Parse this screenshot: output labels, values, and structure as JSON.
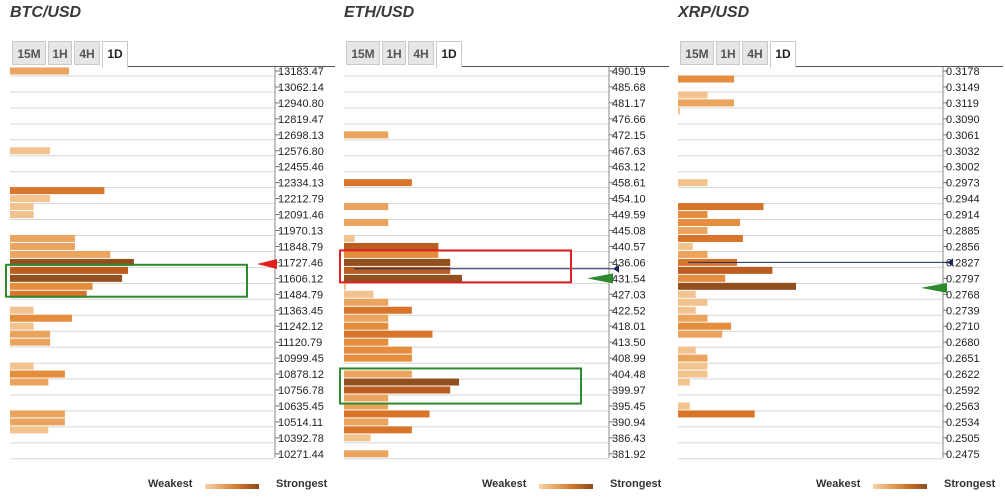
{
  "legend": {
    "weakest": "Weakest",
    "strongest": "Strongest"
  },
  "tabs": [
    "15M",
    "1H",
    "4H",
    "1D"
  ],
  "active_tab": "1D",
  "colors": {
    "level1": "#f2c38f",
    "level2": "#eaa45e",
    "level3": "#e48d3d",
    "level4": "#d9752a",
    "level5": "#bb5c20",
    "level6": "#93501f",
    "red_marker": "#e02020",
    "green_marker": "#2d8a2d",
    "navy_marker": "#1a2a5e",
    "grid": "#d6d6d6"
  },
  "panels": [
    {
      "title": "BTC/USD",
      "chart_data": {
        "type": "bar",
        "orientation": "horizontal",
        "price_levels": [
          "13183.47",
          "13062.14",
          "12940.80",
          "12819.47",
          "12698.13",
          "12576.80",
          "12455.46",
          "12334.13",
          "12212.79",
          "12091.46",
          "11970.13",
          "11848.79",
          "11727.46",
          "11606.12",
          "11484.79",
          "11363.45",
          "11242.12",
          "11120.79",
          "10999.45",
          "10878.12",
          "10756.78",
          "10635.45",
          "10514.11",
          "10392.78",
          "10271.44"
        ],
        "bars": [
          {
            "level": 0.0,
            "strength": 1.0,
            "tier": 2
          },
          {
            "level": 5.0,
            "strength": 0.68,
            "tier": 1
          },
          {
            "level": 7.5,
            "strength": 1.6,
            "tier": 4
          },
          {
            "level": 8.0,
            "strength": 0.68,
            "tier": 1
          },
          {
            "level": 8.5,
            "strength": 0.4,
            "tier": 1
          },
          {
            "level": 9.0,
            "strength": 0.4,
            "tier": 1
          },
          {
            "level": 10.5,
            "strength": 1.1,
            "tier": 2
          },
          {
            "level": 11.0,
            "strength": 1.1,
            "tier": 2
          },
          {
            "level": 11.5,
            "strength": 1.7,
            "tier": 2
          },
          {
            "level": 12.0,
            "strength": 2.1,
            "tier": 6
          },
          {
            "level": 12.5,
            "strength": 2.0,
            "tier": 5
          },
          {
            "level": 13.0,
            "strength": 1.9,
            "tier": 6
          },
          {
            "level": 13.5,
            "strength": 1.4,
            "tier": 3
          },
          {
            "level": 14.0,
            "strength": 1.3,
            "tier": 4
          },
          {
            "level": 15.0,
            "strength": 0.4,
            "tier": 1
          },
          {
            "level": 15.5,
            "strength": 1.05,
            "tier": 3
          },
          {
            "level": 16.0,
            "strength": 0.4,
            "tier": 1
          },
          {
            "level": 16.5,
            "strength": 0.68,
            "tier": 2
          },
          {
            "level": 17.0,
            "strength": 0.68,
            "tier": 2
          },
          {
            "level": 18.5,
            "strength": 0.4,
            "tier": 1
          },
          {
            "level": 19.0,
            "strength": 0.93,
            "tier": 3
          },
          {
            "level": 19.5,
            "strength": 0.65,
            "tier": 2
          },
          {
            "level": 21.5,
            "strength": 0.93,
            "tier": 2
          },
          {
            "level": 22.0,
            "strength": 0.93,
            "tier": 2
          },
          {
            "level": 22.5,
            "strength": 0.65,
            "tier": 1
          }
        ],
        "price_marker": {
          "level": 12.1,
          "side": "red"
        },
        "marker_arrow": "red",
        "highlight_box": {
          "from_level": 12.4,
          "to_level": 13.9,
          "color": "green"
        }
      }
    },
    {
      "title": "ETH/USD",
      "chart_data": {
        "type": "bar",
        "orientation": "horizontal",
        "price_levels": [
          "490.19",
          "485.68",
          "481.17",
          "476.66",
          "472.15",
          "467.63",
          "463.12",
          "458.61",
          "454.10",
          "449.59",
          "445.08",
          "440.57",
          "436.06",
          "431.54",
          "427.03",
          "422.52",
          "418.01",
          "413.50",
          "408.99",
          "404.48",
          "399.97",
          "395.45",
          "390.94",
          "386.43",
          "381.92"
        ],
        "bars": [
          {
            "level": 4.0,
            "strength": 0.75,
            "tier": 2
          },
          {
            "level": 7.0,
            "strength": 1.15,
            "tier": 4
          },
          {
            "level": 8.5,
            "strength": 0.75,
            "tier": 2
          },
          {
            "level": 9.5,
            "strength": 0.75,
            "tier": 2
          },
          {
            "level": 10.5,
            "strength": 0.18,
            "tier": 1
          },
          {
            "level": 11.0,
            "strength": 1.6,
            "tier": 5
          },
          {
            "level": 11.5,
            "strength": 1.6,
            "tier": 3
          },
          {
            "level": 12.0,
            "strength": 1.8,
            "tier": 6
          },
          {
            "level": 12.5,
            "strength": 1.8,
            "tier": 5
          },
          {
            "level": 13.0,
            "strength": 2.0,
            "tier": 6
          },
          {
            "level": 13.5,
            "strength": 0.03,
            "tier": 1
          },
          {
            "level": 14.0,
            "strength": 0.5,
            "tier": 1
          },
          {
            "level": 14.5,
            "strength": 0.75,
            "tier": 2
          },
          {
            "level": 15.0,
            "strength": 1.15,
            "tier": 4
          },
          {
            "level": 15.5,
            "strength": 0.75,
            "tier": 2
          },
          {
            "level": 16.0,
            "strength": 0.75,
            "tier": 3
          },
          {
            "level": 16.5,
            "strength": 1.5,
            "tier": 4
          },
          {
            "level": 17.0,
            "strength": 0.75,
            "tier": 3
          },
          {
            "level": 17.5,
            "strength": 1.15,
            "tier": 3
          },
          {
            "level": 18.0,
            "strength": 1.15,
            "tier": 3
          },
          {
            "level": 19.0,
            "strength": 1.15,
            "tier": 2
          },
          {
            "level": 19.5,
            "strength": 1.95,
            "tier": 6
          },
          {
            "level": 20.0,
            "strength": 1.8,
            "tier": 5
          },
          {
            "level": 20.5,
            "strength": 0.75,
            "tier": 2
          },
          {
            "level": 21.0,
            "strength": 0.75,
            "tier": 2
          },
          {
            "level": 21.5,
            "strength": 1.45,
            "tier": 4
          },
          {
            "level": 22.0,
            "strength": 0.75,
            "tier": 2
          },
          {
            "level": 22.5,
            "strength": 1.15,
            "tier": 4
          },
          {
            "level": 23.0,
            "strength": 0.45,
            "tier": 1
          },
          {
            "level": 24.0,
            "strength": 0.75,
            "tier": 2
          }
        ],
        "price_marker": {
          "level": 12.4,
          "side": "navy"
        },
        "marker_arrow": "green",
        "marker_arrow_level": 13.0,
        "highlight_box": {
          "from_level": 11.5,
          "to_level": 13.0,
          "color": "red"
        },
        "highlight_box2": {
          "from_level": 18.9,
          "to_level": 20.6,
          "color": "green"
        }
      }
    },
    {
      "title": "XRP/USD",
      "chart_data": {
        "type": "bar",
        "orientation": "horizontal",
        "price_levels": [
          "0.3178",
          "0.3149",
          "0.3119",
          "0.3090",
          "0.3061",
          "0.3032",
          "0.3002",
          "0.2973",
          "0.2944",
          "0.2914",
          "0.2885",
          "0.2856",
          "0.2827",
          "0.2797",
          "0.2768",
          "0.2739",
          "0.2710",
          "0.2680",
          "0.2651",
          "0.2622",
          "0.2592",
          "0.2563",
          "0.2534",
          "0.2505",
          "0.2475"
        ],
        "bars": [
          {
            "level": 0.5,
            "strength": 0.95,
            "tier": 3
          },
          {
            "level": 1.5,
            "strength": 0.5,
            "tier": 1
          },
          {
            "level": 2.0,
            "strength": 0.95,
            "tier": 2
          },
          {
            "level": 2.5,
            "strength": 0.03,
            "tier": 1
          },
          {
            "level": 7.0,
            "strength": 0.5,
            "tier": 1
          },
          {
            "level": 8.5,
            "strength": 1.45,
            "tier": 4
          },
          {
            "level": 9.0,
            "strength": 0.5,
            "tier": 3
          },
          {
            "level": 9.5,
            "strength": 1.05,
            "tier": 3
          },
          {
            "level": 10.0,
            "strength": 0.5,
            "tier": 2
          },
          {
            "level": 10.5,
            "strength": 1.1,
            "tier": 4
          },
          {
            "level": 11.0,
            "strength": 0.25,
            "tier": 1
          },
          {
            "level": 11.5,
            "strength": 0.5,
            "tier": 2
          },
          {
            "level": 12.0,
            "strength": 1.0,
            "tier": 4
          },
          {
            "level": 12.5,
            "strength": 1.6,
            "tier": 5
          },
          {
            "level": 13.0,
            "strength": 0.8,
            "tier": 3
          },
          {
            "level": 13.5,
            "strength": 2.0,
            "tier": 6
          },
          {
            "level": 14.0,
            "strength": 0.3,
            "tier": 1
          },
          {
            "level": 14.5,
            "strength": 0.5,
            "tier": 1
          },
          {
            "level": 15.0,
            "strength": 0.3,
            "tier": 1
          },
          {
            "level": 15.5,
            "strength": 0.5,
            "tier": 2
          },
          {
            "level": 16.0,
            "strength": 0.9,
            "tier": 3
          },
          {
            "level": 16.5,
            "strength": 0.75,
            "tier": 2
          },
          {
            "level": 17.5,
            "strength": 0.3,
            "tier": 1
          },
          {
            "level": 18.0,
            "strength": 0.5,
            "tier": 2
          },
          {
            "level": 18.5,
            "strength": 0.5,
            "tier": 1
          },
          {
            "level": 19.0,
            "strength": 0.5,
            "tier": 1
          },
          {
            "level": 19.5,
            "strength": 0.2,
            "tier": 1
          },
          {
            "level": 21.0,
            "strength": 0.2,
            "tier": 1
          },
          {
            "level": 21.5,
            "strength": 1.3,
            "tier": 4
          }
        ],
        "price_marker": {
          "level": 12.0,
          "side": "navy"
        },
        "marker_arrow": "green",
        "marker_arrow_level": 13.6
      }
    }
  ]
}
